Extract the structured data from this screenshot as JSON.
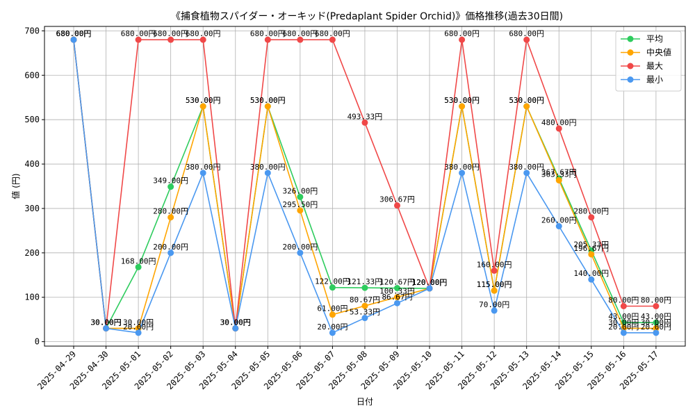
{
  "chart_data": {
    "type": "line",
    "title": "《捕食植物スパイダー・オーキッド(Predaplant Spider Orchid)》価格推移(過去30日間)",
    "xlabel": "日付",
    "ylabel": "値 (円)",
    "ylim": [
      -10,
      710
    ],
    "yticks": [
      0,
      100,
      200,
      300,
      400,
      500,
      600,
      700
    ],
    "grid": true,
    "legend_position": "top-right",
    "categories": [
      "2025-04-29",
      "2025-04-30",
      "2025-05-01",
      "2025-05-02",
      "2025-05-03",
      "2025-05-04",
      "2025-05-05",
      "2025-05-06",
      "2025-05-07",
      "2025-05-08",
      "2025-05-09",
      "2025-05-10",
      "2025-05-11",
      "2025-05-12",
      "2025-05-13",
      "2025-05-14",
      "2025-05-15",
      "2025-05-16",
      "2025-05-17"
    ],
    "series": [
      {
        "name": "平均",
        "color": "#2ecc5e",
        "values": [
          680,
          30,
          168,
          349,
          530,
          30,
          530,
          326,
          122,
          121.33,
          120.67,
          120,
          530,
          115,
          530,
          367.67,
          205.33,
          43,
          43
        ],
        "labels": [
          "680.00円",
          "30.00円",
          "168.00円",
          "349.00円",
          "530.00円",
          "30.00円",
          "530.00円",
          "326.00円",
          "122.00円",
          "121.33円",
          "120.67円",
          "120.00円",
          "530.00円",
          "115.00円",
          "530.00円",
          "367.67円",
          "205.33円",
          "43.00円",
          "43.00円"
        ]
      },
      {
        "name": "中央値",
        "color": "#ffa500",
        "values": [
          680,
          30,
          30,
          280,
          530,
          30,
          530,
          295.5,
          61,
          80.67,
          100.33,
          120,
          530,
          115,
          530,
          363.33,
          196.67,
          30,
          30
        ],
        "labels": [
          "680.00円",
          "30.00円",
          "30.00円",
          "280.00円",
          "530.00円",
          "30.00円",
          "530.00円",
          "295.50円",
          "61.00円",
          "80.67円",
          "100.33円",
          "120.00円",
          "530.00円",
          "115.00円",
          "530.00円",
          "363.33円",
          "196.67円",
          "30.00円",
          "30.00円"
        ]
      },
      {
        "name": "最大",
        "color": "#f04848",
        "values": [
          680,
          30,
          680,
          680,
          680,
          30,
          680,
          680,
          680,
          493.33,
          306.67,
          120,
          680,
          160,
          680,
          480,
          280,
          80,
          80
        ],
        "labels": [
          "680.00円",
          "30.00円",
          "680.00円",
          "680.00円",
          "680.00円",
          "30.00円",
          "680.00円",
          "680.00円",
          "680.00円",
          "493.33円",
          "306.67円",
          "120.00円",
          "680.00円",
          "160.00円",
          "680.00円",
          "480.00円",
          "280.00円",
          "80.00円",
          "80.00円"
        ]
      },
      {
        "name": "最小",
        "color": "#4a98f0",
        "values": [
          680,
          30,
          20,
          200,
          380,
          30,
          380,
          200,
          20,
          53.33,
          86.67,
          120,
          380,
          70,
          380,
          260,
          140,
          20,
          20
        ],
        "labels": [
          "680.00円",
          "30.00円",
          "20.00円",
          "200.00円",
          "380.00円",
          "30.00円",
          "380.00円",
          "200.00円",
          "20.00円",
          "53.33円",
          "86.67円",
          "120.00円",
          "380.00円",
          "70.00円",
          "380.00円",
          "260.00円",
          "140.00円",
          "20.00円",
          "20.00円"
        ]
      }
    ]
  }
}
